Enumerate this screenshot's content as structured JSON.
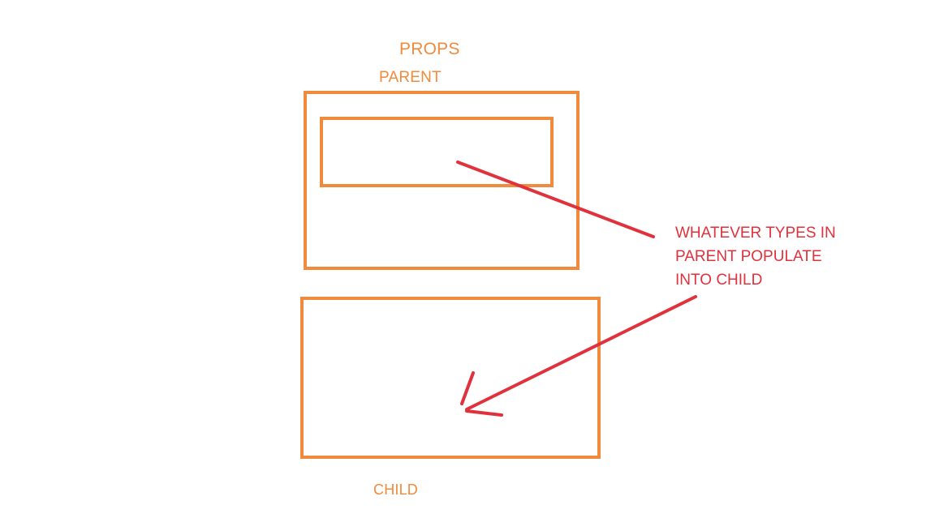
{
  "diagram": {
    "title": "PROPS",
    "parent_label": "PARENT",
    "child_label": "CHILD",
    "annotation": {
      "lines": [
        "WHATEVER TYPES IN",
        "PARENT POPULATE",
        "INTO CHILD"
      ]
    },
    "colors": {
      "boxes": "#f08a3c",
      "annotation": "#e0323c",
      "background": "#ffffff"
    }
  }
}
